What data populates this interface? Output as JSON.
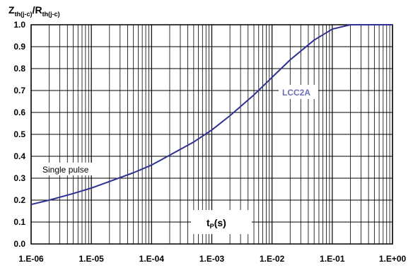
{
  "chart_data": {
    "type": "line",
    "title": "",
    "ylabel": {
      "main": "Z",
      "sub1": "th(j-c)",
      "sep": "/",
      "main2": "R",
      "sub2": "th(j-c)"
    },
    "xlabel": {
      "main": "t",
      "sub": "P",
      "suffix": "(s)"
    },
    "x_scale": "log",
    "xlim": [
      1e-06,
      1
    ],
    "ylim": [
      0,
      1
    ],
    "grid": true,
    "x_ticks": [
      {
        "value": 1e-06,
        "label": "1.E-06"
      },
      {
        "value": 1e-05,
        "label": "1.E-05"
      },
      {
        "value": 0.0001,
        "label": "1.E-04"
      },
      {
        "value": 0.001,
        "label": "1.E-03"
      },
      {
        "value": 0.01,
        "label": "1.E-02"
      },
      {
        "value": 0.1,
        "label": "1.E-01"
      },
      {
        "value": 1,
        "label": "1.E+00"
      }
    ],
    "y_ticks": [
      {
        "value": 0.0,
        "label": "0.0"
      },
      {
        "value": 0.1,
        "label": "0.1"
      },
      {
        "value": 0.2,
        "label": "0.2"
      },
      {
        "value": 0.3,
        "label": "0.3"
      },
      {
        "value": 0.4,
        "label": "0.4"
      },
      {
        "value": 0.5,
        "label": "0.5"
      },
      {
        "value": 0.6,
        "label": "0.6"
      },
      {
        "value": 0.7,
        "label": "0.7"
      },
      {
        "value": 0.8,
        "label": "0.8"
      },
      {
        "value": 0.9,
        "label": "0.9"
      },
      {
        "value": 1.0,
        "label": "1.0"
      }
    ],
    "annotations": {
      "series_label": "LCC2A",
      "pulse_label": "Single pulse"
    },
    "series": [
      {
        "name": "LCC2A",
        "color": "#2e3192",
        "points": [
          [
            1e-06,
            0.18
          ],
          [
            2e-06,
            0.2
          ],
          [
            5e-06,
            0.23
          ],
          [
            1e-05,
            0.255
          ],
          [
            2e-05,
            0.285
          ],
          [
            5e-05,
            0.325
          ],
          [
            0.0001,
            0.36
          ],
          [
            0.0002,
            0.405
          ],
          [
            0.0005,
            0.465
          ],
          [
            0.001,
            0.52
          ],
          [
            0.002,
            0.585
          ],
          [
            0.005,
            0.68
          ],
          [
            0.01,
            0.76
          ],
          [
            0.02,
            0.84
          ],
          [
            0.05,
            0.93
          ],
          [
            0.1,
            0.98
          ],
          [
            0.2,
            1.0
          ],
          [
            0.5,
            1.0
          ],
          [
            1,
            1.0
          ]
        ]
      }
    ]
  }
}
